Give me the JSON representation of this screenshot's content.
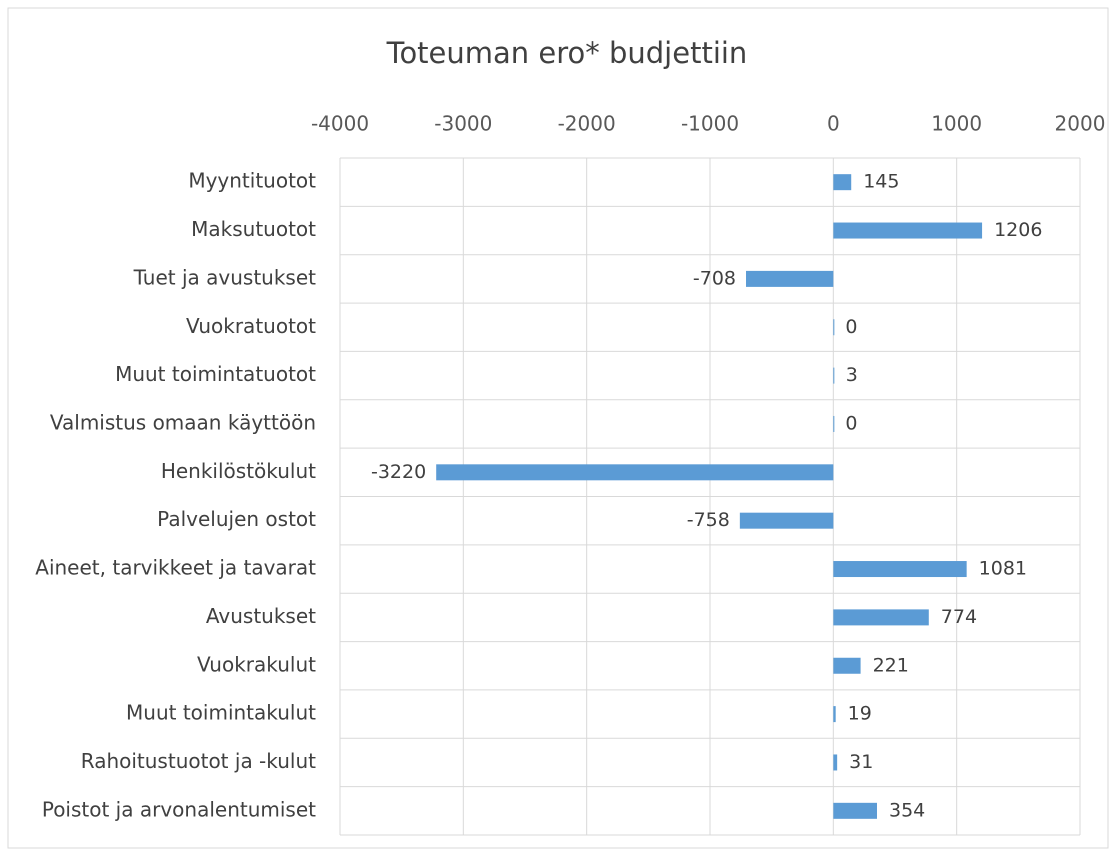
{
  "chart_data": {
    "type": "barh",
    "title": "Toteuman ero* budjettiin",
    "categories": [
      "Myyntituotot",
      "Maksutuotot",
      "Tuet ja avustukset",
      "Vuokratuotot",
      "Muut toimintatuotot",
      "Valmistus omaan käyttöön",
      "Henkilöstökulut",
      "Palvelujen ostot",
      "Aineet, tarvikkeet ja tavarat",
      "Avustukset",
      "Vuokrakulut",
      "Muut toimintakulut",
      "Rahoitustuotot ja -kulut",
      "Poistot ja arvonalentumiset"
    ],
    "values": [
      145,
      1206,
      -708,
      0,
      3,
      0,
      -3220,
      -758,
      1081,
      774,
      221,
      19,
      31,
      354
    ],
    "color": "#5b9bd5",
    "xlim": [
      -4000,
      2000
    ],
    "xticks": [
      -4000,
      -3000,
      -2000,
      -1000,
      0,
      1000,
      2000
    ],
    "grid": true
  }
}
